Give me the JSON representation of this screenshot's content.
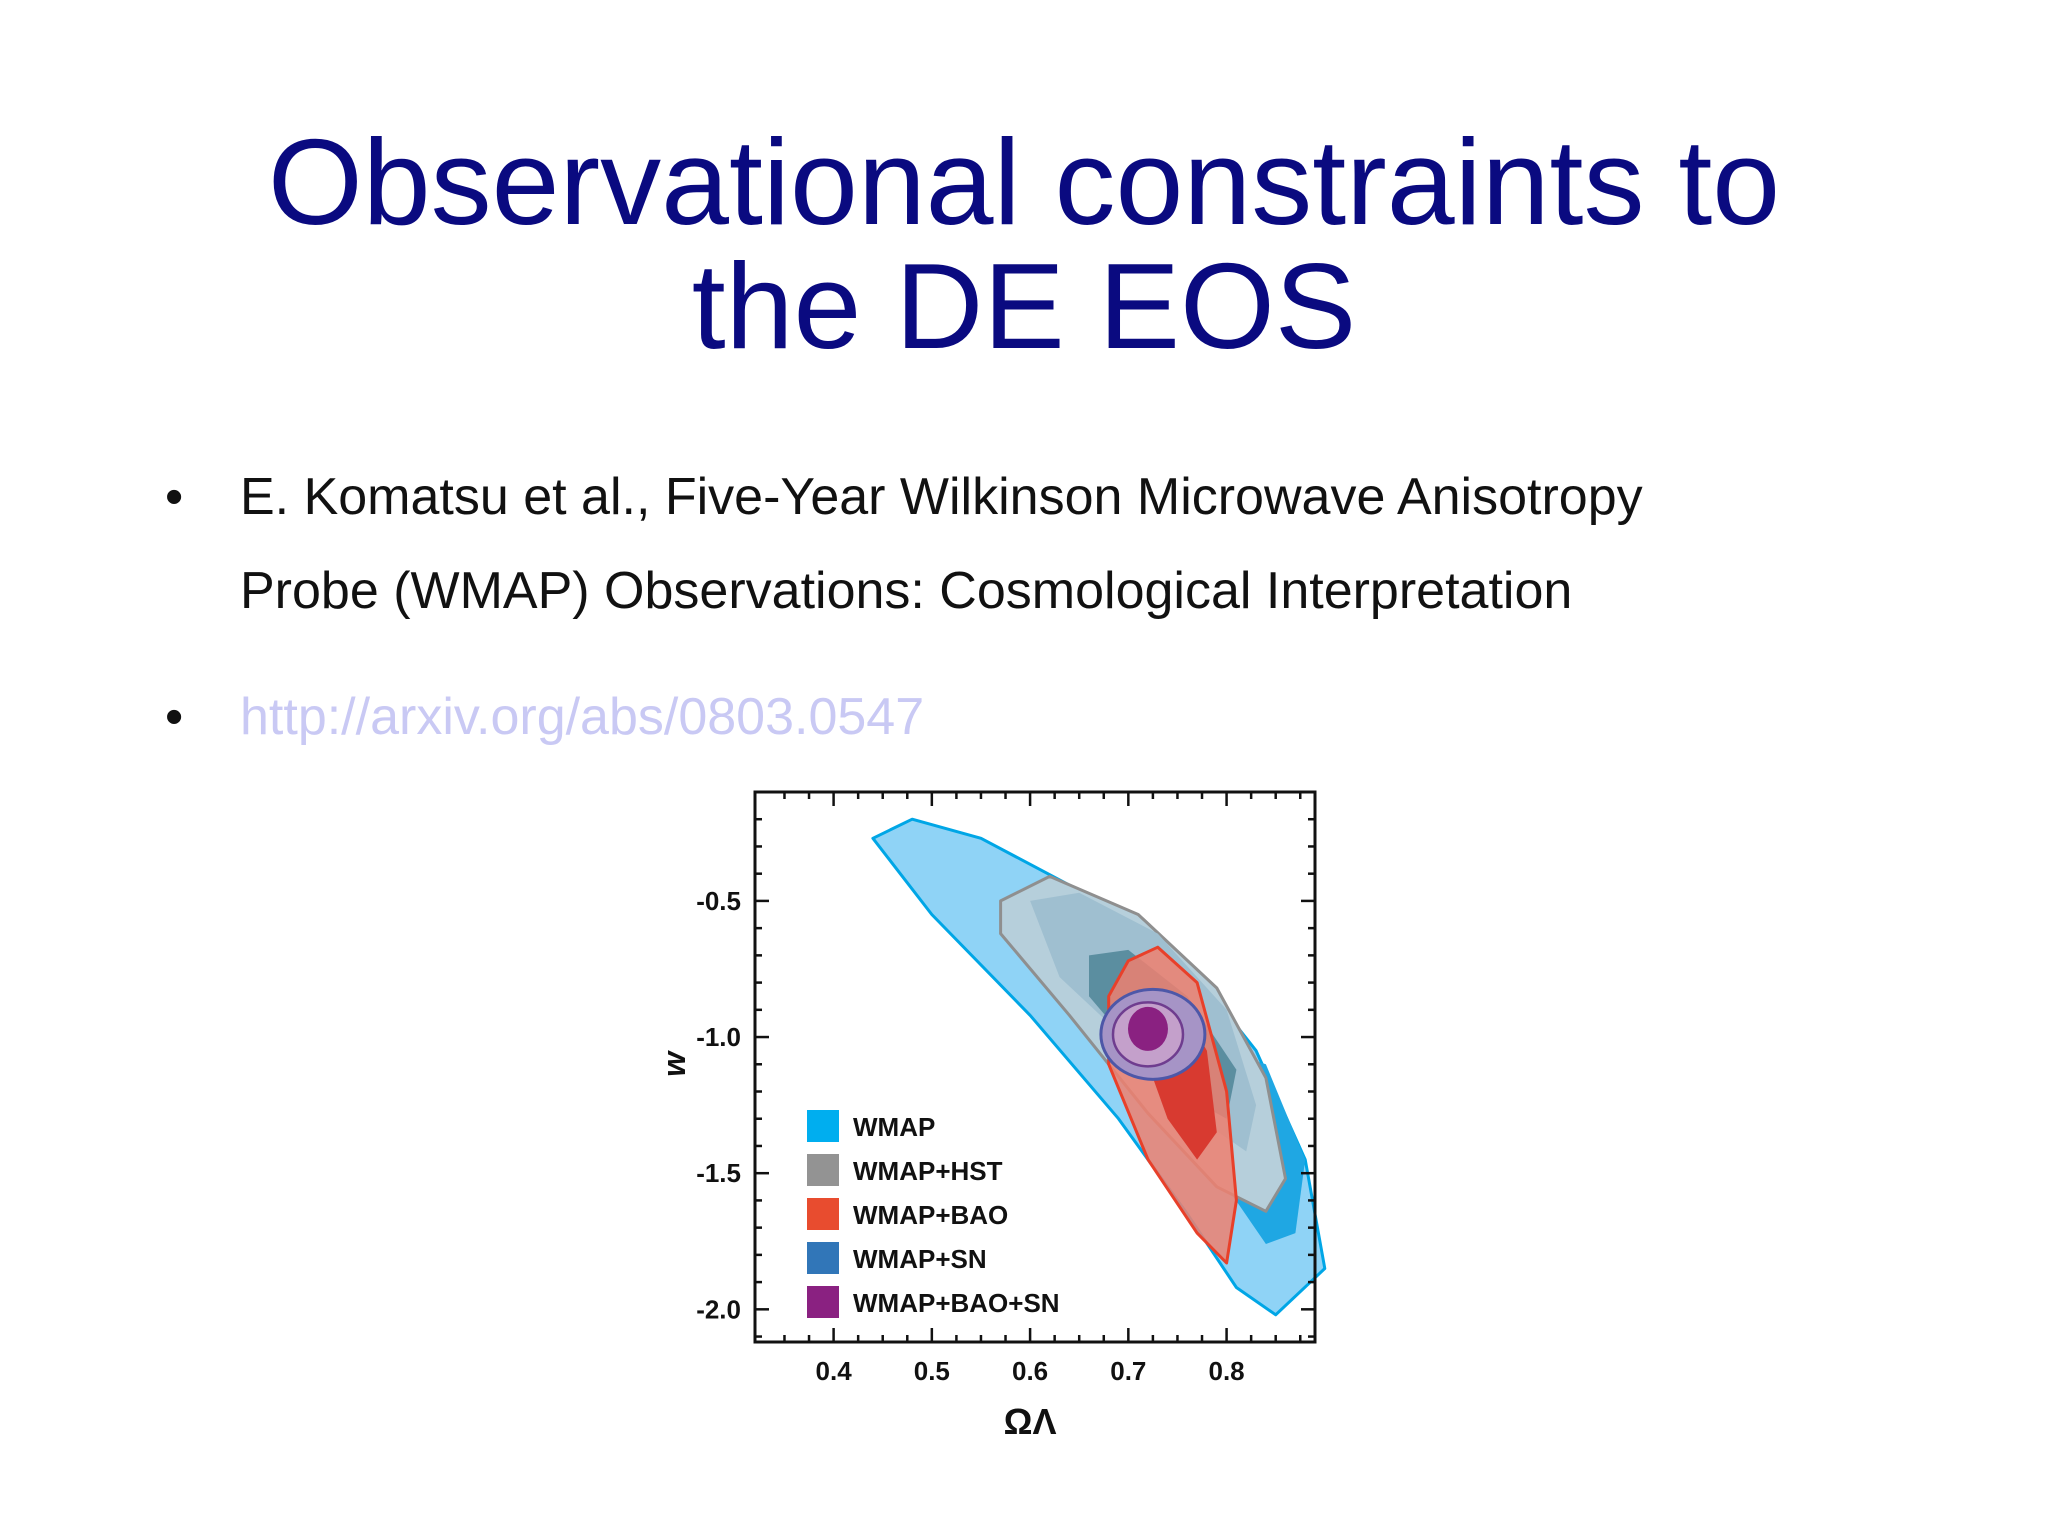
{
  "slide": {
    "title_lines": [
      "Observational constraints to",
      "the DE EOS"
    ],
    "bullets": [
      {
        "text_lines": [
          "E. Komatsu et al., Five-Year Wilkinson Microwave Anisotropy",
          "Probe (WMAP) Observations: Cosmological Interpretation"
        ]
      },
      {
        "text": "http://arxiv.org/abs/0803.0547",
        "is_link": true
      }
    ]
  },
  "chart_data": {
    "type": "contour",
    "xlabel": "ΩΛ",
    "ylabel": "w",
    "xlim": [
      0.32,
      0.89
    ],
    "ylim": [
      -2.12,
      -0.1
    ],
    "x_ticks": [
      {
        "value": 0.4,
        "label": "0.4"
      },
      {
        "value": 0.5,
        "label": "0.5"
      },
      {
        "value": 0.6,
        "label": "0.6"
      },
      {
        "value": 0.7,
        "label": "0.7"
      },
      {
        "value": 0.8,
        "label": "0.8"
      }
    ],
    "y_ticks": [
      {
        "value": -0.5,
        "label": "-0.5"
      },
      {
        "value": -1.0,
        "label": "-1.0"
      },
      {
        "value": -1.5,
        "label": "-1.5"
      },
      {
        "value": -2.0,
        "label": "-2.0"
      }
    ],
    "legend_position": "bottom-left",
    "series": [
      {
        "name": "WMAP",
        "color": "#00aeef"
      },
      {
        "name": "WMAP+HST",
        "color": "#939393"
      },
      {
        "name": "WMAP+BAO",
        "color": "#e84c2f"
      },
      {
        "name": "WMAP+SN",
        "color": "#3176b8"
      },
      {
        "name": "WMAP+BAO+SN",
        "color": "#8a2181"
      }
    ],
    "best_fit": {
      "omega_lambda": 0.72,
      "w": -0.97
    }
  }
}
